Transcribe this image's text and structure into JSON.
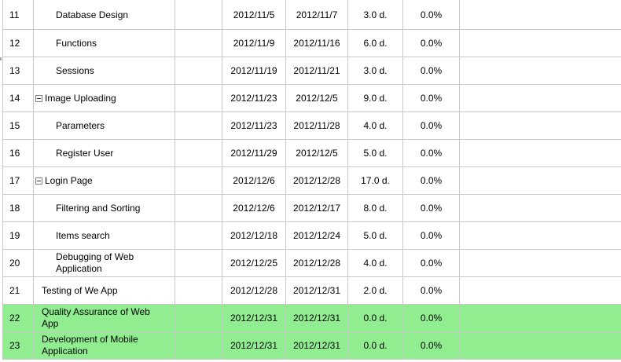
{
  "rows": [
    {
      "id": "11",
      "name": "Database Design",
      "start": "2012/11/5",
      "end": "2012/11/7",
      "duration": "3.0 d.",
      "complete": "0.0%"
    },
    {
      "id": "12",
      "name": "Functions",
      "start": "2012/11/9",
      "end": "2012/11/16",
      "duration": "6.0 d.",
      "complete": "0.0%"
    },
    {
      "id": "13",
      "name": "Sessions",
      "start": "2012/11/19",
      "end": "2012/11/21",
      "duration": "3.0 d.",
      "complete": "0.0%"
    },
    {
      "id": "14",
      "name": "Image Uploading",
      "start": "2012/11/23",
      "end": "2012/12/5",
      "duration": "9.0 d.",
      "complete": "0.0%"
    },
    {
      "id": "15",
      "name": "Parameters",
      "start": "2012/11/23",
      "end": "2012/11/28",
      "duration": "4.0 d.",
      "complete": "0.0%"
    },
    {
      "id": "16",
      "name": "Register User",
      "start": "2012/11/29",
      "end": "2012/12/5",
      "duration": "5.0 d.",
      "complete": "0.0%"
    },
    {
      "id": "17",
      "name": "Login Page",
      "start": "2012/12/6",
      "end": "2012/12/28",
      "duration": "17.0 d.",
      "complete": "0.0%"
    },
    {
      "id": "18",
      "name": "Filtering and Sorting",
      "start": "2012/12/6",
      "end": "2012/12/17",
      "duration": "8.0 d.",
      "complete": "0.0%"
    },
    {
      "id": "19",
      "name": "Items search",
      "start": "2012/12/18",
      "end": "2012/12/24",
      "duration": "5.0 d.",
      "complete": "0.0%"
    },
    {
      "id": "20",
      "name": "Debugging of Web Application",
      "start": "2012/12/25",
      "end": "2012/12/28",
      "duration": "4.0 d.",
      "complete": "0.0%"
    },
    {
      "id": "21",
      "name": "Testing of We App",
      "start": "2012/12/28",
      "end": "2012/12/31",
      "duration": "2.0 d.",
      "complete": "0.0%"
    },
    {
      "id": "22",
      "name": "Quality Assurance of Web App",
      "start": "2012/12/31",
      "end": "2012/12/31",
      "duration": "0.0 d.",
      "complete": "0.0%"
    },
    {
      "id": "23",
      "name": "Development of Mobile Application",
      "start": "2012/12/31",
      "end": "2012/12/31",
      "duration": "0.0 d.",
      "complete": "0.0%"
    }
  ],
  "colors": {
    "highlight_row": "#90ee90",
    "grid_line": "#c8c8c8"
  }
}
